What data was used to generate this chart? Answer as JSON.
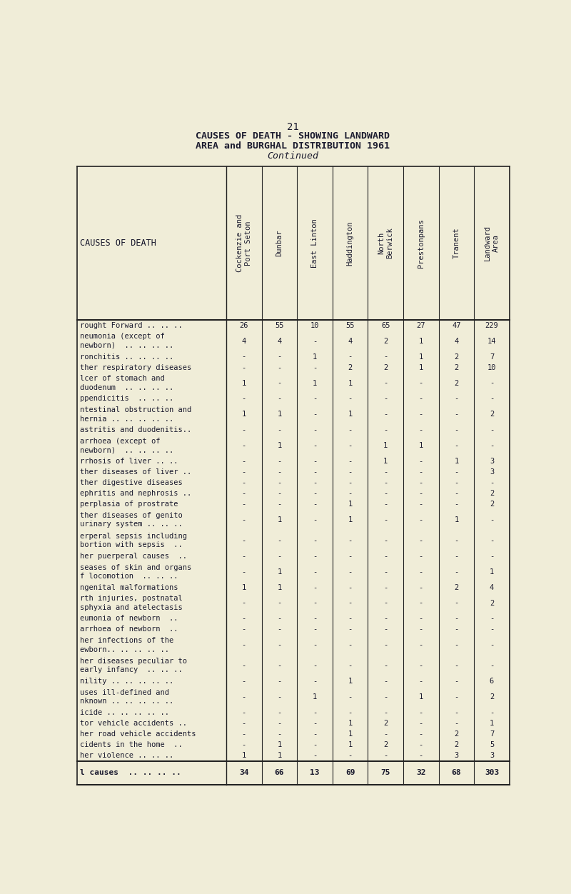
{
  "page_number": "21",
  "title_line1": "CAUSES OF DEATH - SHOWING LANDWARD",
  "title_line2": "AREA and BURGHAL DISTRIBUTION 1961",
  "title_line3": "Continued",
  "col_headers": [
    "Cockenzie and\nPort Seton",
    "Dunbar",
    "East Linton",
    "Haddington",
    "North\nBerwick",
    "Prestonpans",
    "Tranent",
    "Landward\nArea"
  ],
  "row_label": "CAUSES OF DEATH",
  "rows": [
    {
      "label": "rought Forward .. .. ..",
      "values": [
        "26",
        "55",
        "10",
        "55",
        "65",
        "27",
        "47",
        "229"
      ]
    },
    {
      "label": "neumonia (except of\nnewborn)  .. .. .. ..",
      "values": [
        "4",
        "4",
        "-",
        "4",
        "2",
        "1",
        "4",
        "14"
      ]
    },
    {
      "label": "ronchitis .. .. .. ..",
      "values": [
        "-",
        "-",
        "1",
        "-",
        "-",
        "1",
        "2",
        "7"
      ]
    },
    {
      "label": "ther respiratory diseases",
      "values": [
        "-",
        "-",
        "-",
        "2",
        "2",
        "1",
        "2",
        "10"
      ]
    },
    {
      "label": "lcer of stomach and\nduodenum  .. .. .. ..",
      "values": [
        "1",
        "-",
        "1",
        "1",
        "-",
        "-",
        "2",
        "-"
      ]
    },
    {
      "label": "ppendicitis  .. .. ..",
      "values": [
        "-",
        "-",
        "-",
        "-",
        "-",
        "-",
        "-",
        "-"
      ]
    },
    {
      "label": "ntestinal obstruction and\nhernia .. .. .. .. ..",
      "values": [
        "1",
        "1",
        "-",
        "1",
        "-",
        "-",
        "-",
        "2"
      ]
    },
    {
      "label": "astritis and duodenitis..",
      "values": [
        "-",
        "-",
        "-",
        "-",
        "-",
        "-",
        "-",
        "-"
      ]
    },
    {
      "label": "arrhoea (except of\nnewborn)  .. .. .. ..",
      "values": [
        "-",
        "1",
        "-",
        "-",
        "1",
        "1",
        "-",
        "-"
      ]
    },
    {
      "label": "rrhosis of liver .. ..",
      "values": [
        "-",
        "-",
        "-",
        "-",
        "1",
        "-",
        "1",
        "3"
      ]
    },
    {
      "label": "ther diseases of liver ..",
      "values": [
        "-",
        "-",
        "-",
        "-",
        "-",
        "-",
        "-",
        "3"
      ]
    },
    {
      "label": "ther digestive diseases",
      "values": [
        "-",
        "-",
        "-",
        "-",
        "-",
        "-",
        "-",
        "-"
      ]
    },
    {
      "label": "ephritis and nephrosis ..",
      "values": [
        "-",
        "-",
        "-",
        "-",
        "-",
        "-",
        "-",
        "2"
      ]
    },
    {
      "label": "perplasia of prostrate",
      "values": [
        "-",
        "-",
        "-",
        "1",
        "-",
        "-",
        "-",
        "2"
      ]
    },
    {
      "label": "ther diseases of genito\nurinary system .. .. ..",
      "values": [
        "-",
        "1",
        "-",
        "1",
        "-",
        "-",
        "1",
        "-"
      ]
    },
    {
      "label": "erperal sepsis including\nbortion with sepsis  ..",
      "values": [
        "-",
        "-",
        "-",
        "-",
        "-",
        "-",
        "-",
        "-"
      ]
    },
    {
      "label": "her puerperal causes  ..",
      "values": [
        "-",
        "-",
        "-",
        "-",
        "-",
        "-",
        "-",
        "-"
      ]
    },
    {
      "label": "seases of skin and organs\nf locomotion  .. .. ..",
      "values": [
        "-",
        "1",
        "-",
        "-",
        "-",
        "-",
        "-",
        "1"
      ]
    },
    {
      "label": "ngenital malformations",
      "values": [
        "1",
        "1",
        "-",
        "-",
        "-",
        "-",
        "2",
        "4"
      ]
    },
    {
      "label": "rth injuries, postnatal\nsphyxia and atelectasis",
      "values": [
        "-",
        "-",
        "-",
        "-",
        "-",
        "-",
        "-",
        "2"
      ]
    },
    {
      "label": "eumonia of newborn  ..",
      "values": [
        "-",
        "-",
        "-",
        "-",
        "-",
        "-",
        "-",
        "-"
      ]
    },
    {
      "label": "arrhoea of newborn  ..",
      "values": [
        "-",
        "-",
        "-",
        "-",
        "-",
        "-",
        "-",
        "-"
      ]
    },
    {
      "label": "her infections of the\newborn.. .. .. .. ..",
      "values": [
        "-",
        "-",
        "-",
        "-",
        "-",
        "-",
        "-",
        "-"
      ]
    },
    {
      "label": "her diseases peculiar to\nearly infancy  .. .. ..",
      "values": [
        "-",
        "-",
        "-",
        "-",
        "-",
        "-",
        "-",
        "-"
      ]
    },
    {
      "label": "nility .. .. .. .. ..",
      "values": [
        "-",
        "-",
        "-",
        "1",
        "-",
        "-",
        "-",
        "6"
      ]
    },
    {
      "label": "uses ill-defined and\nnknown .. .. .. .. ..",
      "values": [
        "-",
        "-",
        "1",
        "-",
        "-",
        "1",
        "-",
        "2"
      ]
    },
    {
      "label": "icide .. .. .. .. ..",
      "values": [
        "-",
        "-",
        "-",
        "-",
        "-",
        "-",
        "-",
        "-"
      ]
    },
    {
      "label": "tor vehicle accidents ..",
      "values": [
        "-",
        "-",
        "-",
        "1",
        "2",
        "-",
        "-",
        "1"
      ]
    },
    {
      "label": "her road vehicle accidents",
      "values": [
        "-",
        "-",
        "-",
        "1",
        "-",
        "-",
        "2",
        "7"
      ]
    },
    {
      "label": "cidents in the home  ..",
      "values": [
        "-",
        "1",
        "-",
        "1",
        "2",
        "-",
        "2",
        "5"
      ]
    },
    {
      "label": "her violence .. .. ..",
      "values": [
        "1",
        "1",
        "-",
        "-",
        "-",
        "-",
        "3",
        "3"
      ]
    },
    {
      "label": "l causes  .. .. .. ..",
      "values": [
        "34",
        "66",
        "13",
        "69",
        "75",
        "32",
        "68",
        "303"
      ],
      "is_total": true
    }
  ],
  "bg_color": "#f0edd8",
  "text_color": "#1a1a2e",
  "line_color": "#222222",
  "body_font_size": 7.5,
  "total_font_size": 8.0,
  "header_font_size": 7.5
}
